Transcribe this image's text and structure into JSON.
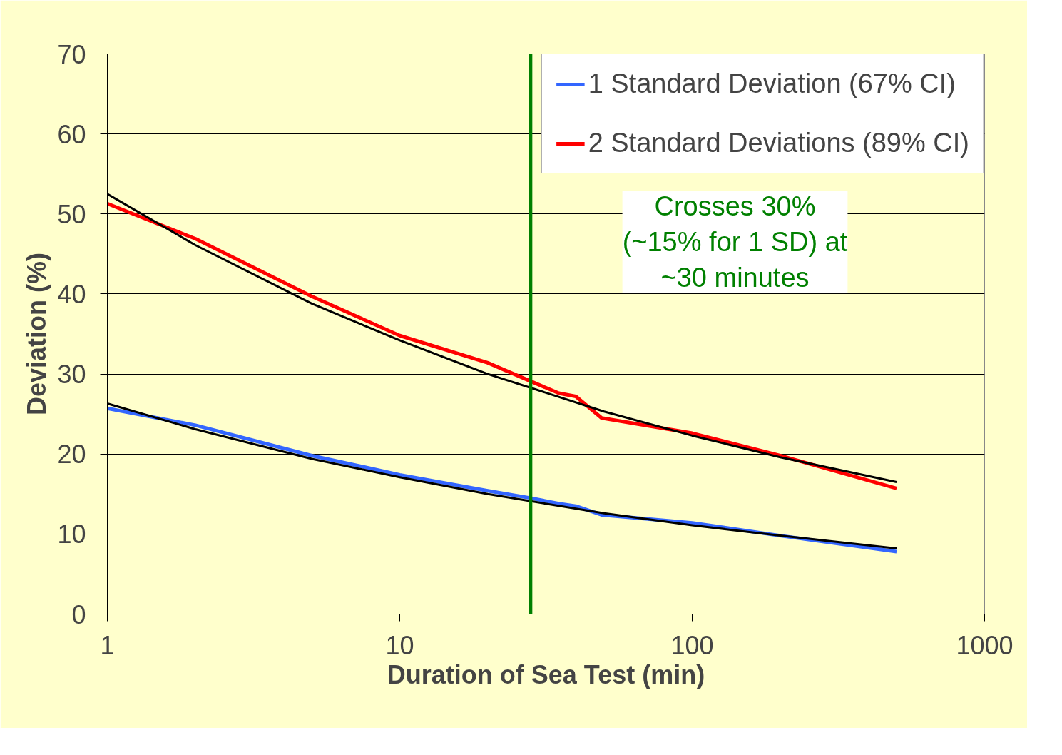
{
  "chart_data": {
    "type": "line",
    "xlabel": "Duration of Sea Test (min)",
    "ylabel": "Deviation (%)",
    "log": "x",
    "xlim": [
      1,
      1000
    ],
    "xticks": [
      1,
      10,
      100,
      1000
    ],
    "ylim": [
      0,
      70
    ],
    "yticks": [
      0,
      10,
      20,
      30,
      40,
      50,
      60,
      70
    ],
    "grid": "y",
    "legend": "top right",
    "marker": "none",
    "line_style": "solid",
    "series": [
      {
        "name": "1 Standard Deviation (67% CI)",
        "color": "#3366ff",
        "x": [
          1,
          2,
          5,
          10,
          20,
          28,
          35,
          40,
          49,
          100,
          200,
          500
        ],
        "values": [
          25.7,
          23.6,
          19.8,
          17.4,
          15.4,
          14.5,
          13.8,
          13.5,
          12.4,
          11.4,
          9.8,
          7.8
        ]
      },
      {
        "name": "2 Standard Deviations (89% CI)",
        "color": "#ff0000",
        "x": [
          1,
          2,
          5,
          10,
          20,
          28,
          35,
          40,
          49,
          100,
          200,
          500
        ],
        "values": [
          51.3,
          46.9,
          39.7,
          34.8,
          31.4,
          29.1,
          27.6,
          27.2,
          24.5,
          22.6,
          19.8,
          15.7
        ]
      },
      {
        "color": "#000000",
        "x": [
          1,
          2,
          5,
          10,
          20,
          50,
          100,
          200,
          500
        ],
        "values": [
          26.3,
          23.1,
          19.4,
          17.1,
          15.0,
          12.6,
          11.1,
          9.8,
          8.2
        ]
      },
      {
        "color": "#000000",
        "x": [
          1,
          2,
          5,
          10,
          20,
          50,
          100,
          200,
          500
        ],
        "values": [
          52.5,
          46.1,
          38.8,
          34.2,
          30.0,
          25.3,
          22.3,
          19.6,
          16.5
        ]
      }
    ],
    "ref_lines": [
      {
        "axis": "x",
        "value": 28,
        "color": "#008000"
      }
    ],
    "annotations": [
      "Crosses 30%\n(~15% for 1 SD) at\n~30 minutes"
    ]
  }
}
